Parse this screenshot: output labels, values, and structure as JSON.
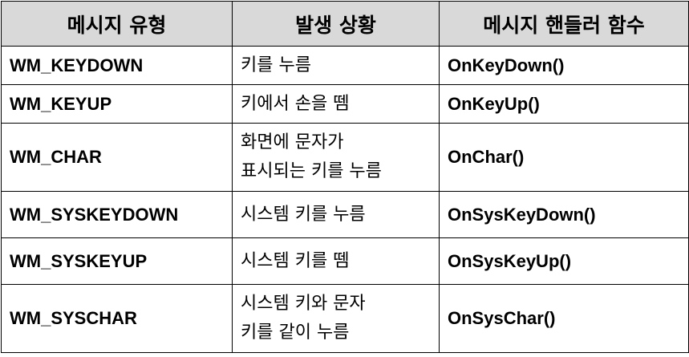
{
  "table": {
    "headers": [
      "메시지 유형",
      "발생 상황",
      "메시지 핸들러 함수"
    ],
    "rows": [
      {
        "type": "WM_KEYDOWN",
        "situation": [
          "키를 누름"
        ],
        "handler": "OnKeyDown()"
      },
      {
        "type": "WM_KEYUP",
        "situation": [
          "키에서 손을 뗌"
        ],
        "handler": "OnKeyUp()"
      },
      {
        "type": "WM_CHAR",
        "situation": [
          "화면에 문자가",
          "표시되는 키를 누름"
        ],
        "handler": "OnChar()"
      },
      {
        "type": "WM_SYSKEYDOWN",
        "situation": [
          "시스템 키를 누름"
        ],
        "handler": "OnSysKeyDown()"
      },
      {
        "type": "WM_SYSKEYUP",
        "situation": [
          "시스템 키를 뗌"
        ],
        "handler": "OnSysKeyUp()"
      },
      {
        "type": "WM_SYSCHAR",
        "situation": [
          "시스템 키와 문자",
          "키를 같이 누름"
        ],
        "handler": "OnSysChar()"
      }
    ]
  }
}
